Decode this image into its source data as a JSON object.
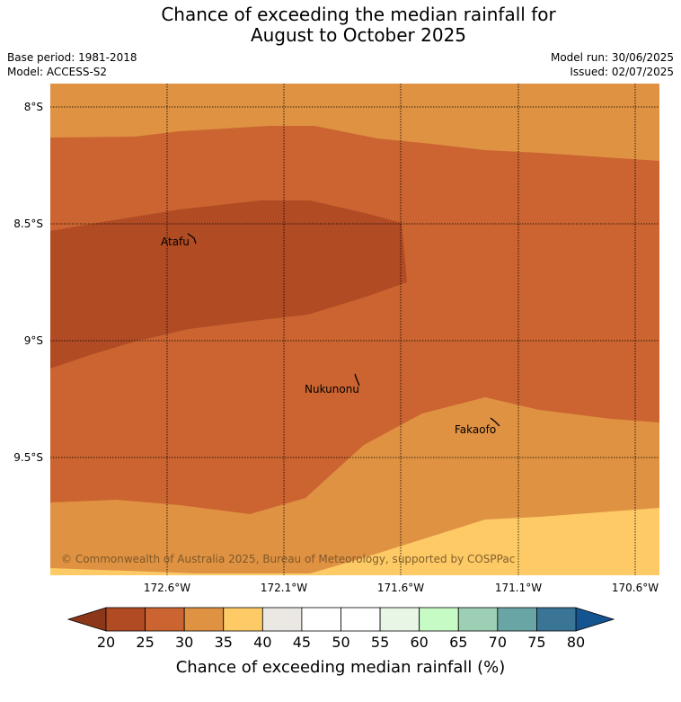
{
  "header": {
    "title_line1": "Chance of exceeding the median rainfall for",
    "title_line2": "August to October 2025",
    "base_period": "Base period: 1981-2018",
    "model": "Model: ACCESS-S2",
    "model_run": "Model run: 30/06/2025",
    "issued": "Issued: 02/07/2025"
  },
  "map": {
    "lat_labels": [
      "8°S",
      "8.5°S",
      "9°S",
      "9.5°S"
    ],
    "lon_labels": [
      "172.6°W",
      "172.1°W",
      "171.6°W",
      "171.1°W",
      "170.6°W"
    ],
    "places": [
      {
        "name": "Atafu"
      },
      {
        "name": "Nukunonu"
      },
      {
        "name": "Fakaofo"
      }
    ],
    "copyright": "© Commonwealth of Australia 2025, Bureau of Meteorology, supported by COSPPac"
  },
  "legend": {
    "title": "Chance of exceeding median rainfall (%)",
    "ticks": [
      "20",
      "25",
      "30",
      "35",
      "40",
      "45",
      "50",
      "55",
      "60",
      "65",
      "70",
      "75",
      "80"
    ],
    "colors": [
      "#b04b24",
      "#cb6431",
      "#e09243",
      "#fdca66",
      "#ebe8e4",
      "#ffffff",
      "#ffffff",
      "#e8f6e6",
      "#c6fbc6",
      "#9dcfb4",
      "#6aa5a5",
      "#3b7595",
      "#145591"
    ],
    "low_extension_color": "#8c3719",
    "high_extension_color": "#145591"
  }
}
